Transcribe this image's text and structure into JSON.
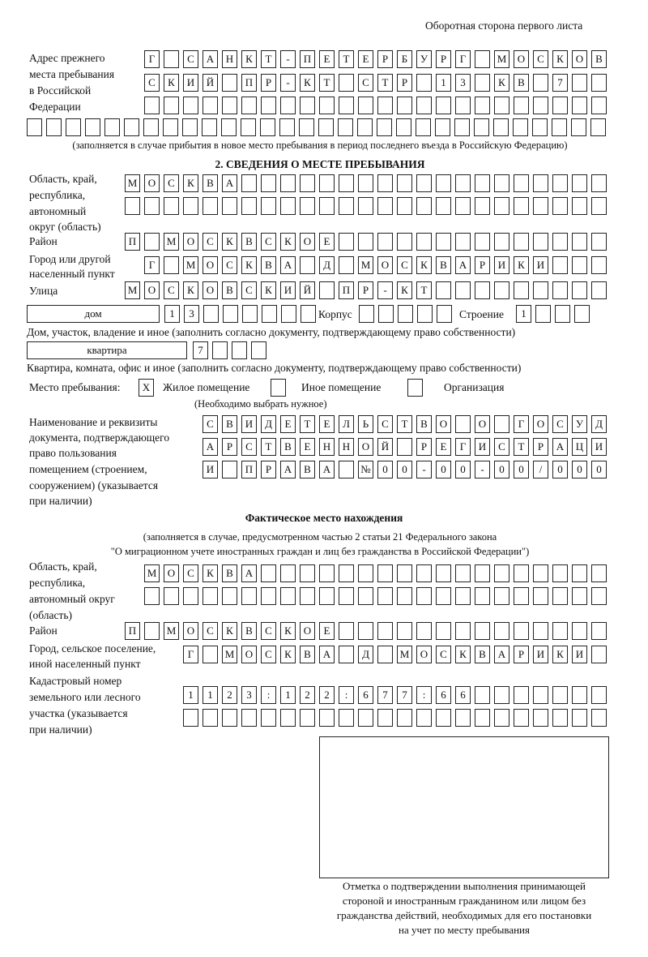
{
  "header": {
    "page_side": "Оборотная сторона первого листа"
  },
  "previous_address": {
    "label_lines": [
      "Адрес прежнего",
      "места пребывания",
      "в Российской",
      "Федерации"
    ],
    "rows": [
      "Г САНКТ-ПЕТЕРБУРГ МОСКОВ",
      "СКИЙ ПР-КТ СТР 13 КВ 7",
      "",
      ""
    ],
    "note": "(заполняется в случае прибытия в новое место пребывания в период последнего въезда в Российскую Федерацию)"
  },
  "section2": {
    "title": "2. СВЕДЕНИЯ О МЕСТЕ ПРЕБЫВАНИЯ",
    "region": {
      "label_lines": [
        "Область, край,",
        "республика,",
        "автономный",
        "округ (область)"
      ],
      "rows": [
        "МОСКВА",
        ""
      ]
    },
    "district": {
      "label": "Район",
      "value": "П МОСКВСКОЕ"
    },
    "city": {
      "label_lines": [
        "Город или другой",
        "населенный пункт"
      ],
      "value": "Г МОСКВА Д МОСКВАРИКИ"
    },
    "street": {
      "label": "Улица",
      "value": "МОСКОВСКИЙ ПР-КТ"
    },
    "house": {
      "type": "дом",
      "number": "13",
      "korpus_label": "Корпус",
      "korpus": "",
      "stroenie_label": "Строение",
      "stroenie": "1",
      "note": "Дом, участок, владение и иное (заполнить согласно документу, подтверждающему право собственности)"
    },
    "apartment": {
      "type": "квартира",
      "number": "7",
      "note": "Квартира, комната, офис и иное (заполнить согласно документу, подтверждающему право собственности)"
    },
    "stay_place": {
      "label": "Место пребывания:",
      "options": [
        {
          "label": "Жилое помещение",
          "mark": "Х",
          "checked": true
        },
        {
          "label": "Иное помещение",
          "mark": "",
          "checked": false
        },
        {
          "label": "Организация",
          "mark": "",
          "checked": false
        }
      ],
      "note": "(Необходимо выбрать нужное)"
    },
    "document": {
      "label_lines": [
        "Наименование и реквизиты",
        "документа, подтверждающего",
        "право пользования",
        "помещением (строением,",
        "сооружением) (указывается",
        "при наличии)"
      ],
      "rows": [
        "СВИДЕТЕЛЬСТВО О ГОСУД",
        "АРСТВЕННОЙ РЕГИСТРАЦИ",
        "И ПРАВА №00-00-00/000"
      ]
    }
  },
  "actual_location": {
    "title": "Фактическое место нахождения",
    "note_lines": [
      "(заполняется в случае, предусмотренном частью 2 статьи 21 Федерального закона",
      "\"О миграционном учете иностранных граждан и лиц без гражданства в Российской Федерации\")"
    ],
    "region": {
      "label_lines": [
        "Область, край,",
        "республика,",
        "автономный округ",
        "(область)"
      ],
      "rows": [
        "МОСКВА",
        ""
      ]
    },
    "district": {
      "label": "Район",
      "value": "П МОСКВСКОЕ"
    },
    "settlement": {
      "label_lines": [
        "Город, сельское поселение,",
        "иной населенный пункт"
      ],
      "value": "Г МОСКВА Д МОСКВАРИКИ"
    },
    "cadastral": {
      "label_lines": [
        "Кадастровый номер",
        "земельного или лесного",
        "участка (указывается",
        "при наличии)"
      ],
      "rows": [
        "1123:122:677:66",
        ""
      ]
    }
  },
  "confirmation": {
    "caption_lines": [
      "Отметка о подтверждении выполнения принимающей",
      "стороной и иностранным гражданином или лицом без",
      "гражданства действий, необходимых для его постановки",
      "на учет по месту пребывания"
    ]
  }
}
